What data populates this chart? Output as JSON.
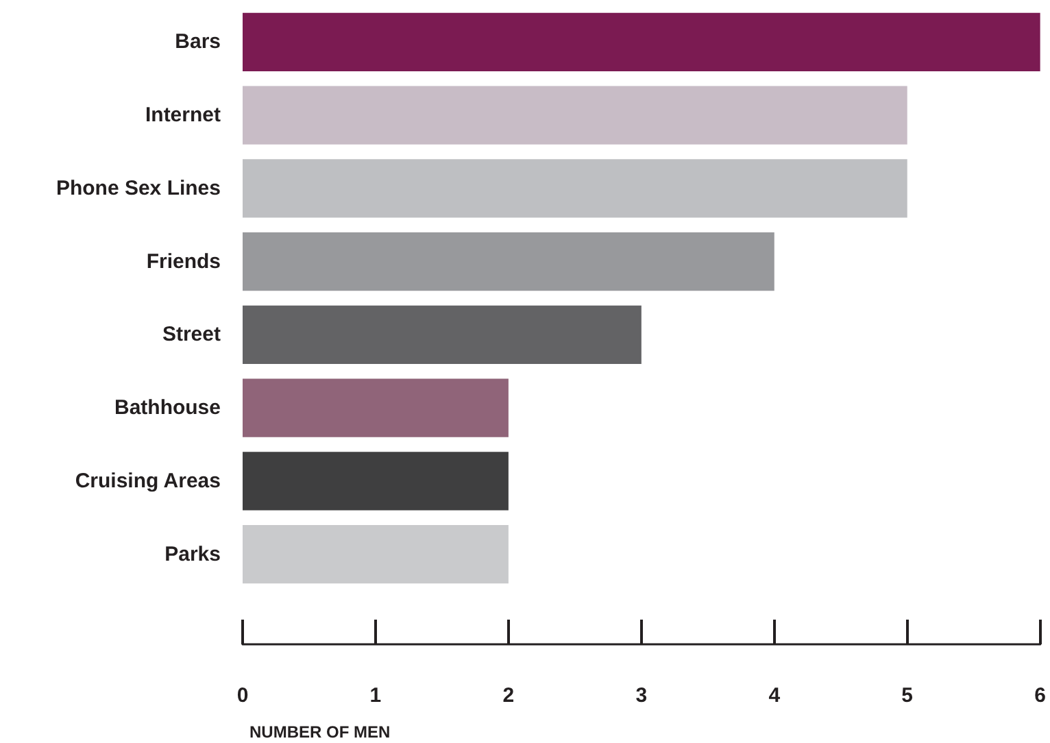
{
  "chart_data": {
    "type": "bar",
    "orientation": "horizontal",
    "xlabel": "NUMBER OF MEN",
    "categories": [
      "Bars",
      "Internet",
      "Phone Sex Lines",
      "Friends",
      "Street",
      "Bathhouse",
      "Cruising Areas",
      "Parks"
    ],
    "values": [
      6,
      5,
      5,
      4,
      3,
      2,
      2,
      2
    ],
    "colors": [
      "#7b1b52",
      "#c8bcc6",
      "#bebfc2",
      "#98999c",
      "#636365",
      "#906479",
      "#3f3f40",
      "#c9cacc"
    ],
    "xlim": [
      0,
      6
    ],
    "xticks": [
      0,
      1,
      2,
      3,
      4,
      5,
      6
    ]
  }
}
